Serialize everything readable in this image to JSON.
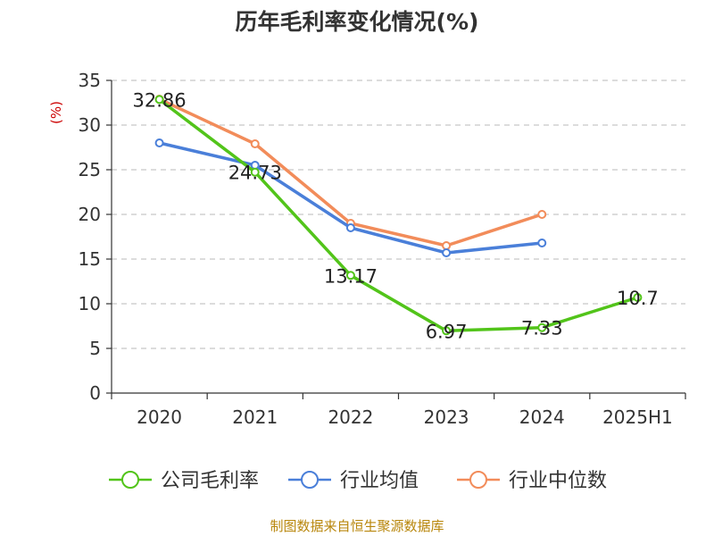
{
  "chart_data": {
    "type": "line",
    "title": "历年毛利率变化情况(%)",
    "ylabel": "(%)",
    "xlabel": "",
    "categories": [
      "2020",
      "2021",
      "2022",
      "2023",
      "2024",
      "2025H1"
    ],
    "ylim": [
      0,
      35
    ],
    "yticks": [
      "0",
      "5",
      "10",
      "15",
      "20",
      "25",
      "30",
      "35"
    ],
    "grid": true,
    "legend_position": "bottom",
    "series": [
      {
        "name": "公司毛利率",
        "color": "#52c41a",
        "values": [
          32.86,
          24.73,
          13.17,
          6.97,
          7.33,
          10.7
        ],
        "labels": [
          "32.86",
          "24.73",
          "13.17",
          "6.97",
          "7.33",
          "10.7"
        ]
      },
      {
        "name": "行业均值",
        "color": "#4a7fd9",
        "values": [
          28.0,
          25.5,
          18.5,
          15.7,
          16.8,
          null
        ],
        "labels": []
      },
      {
        "name": "行业中位数",
        "color": "#f28c5a",
        "values": [
          32.9,
          27.9,
          19.0,
          16.5,
          20.0,
          null
        ],
        "labels": []
      }
    ]
  },
  "footer": {
    "source": "制图数据来自恒生聚源数据库"
  }
}
